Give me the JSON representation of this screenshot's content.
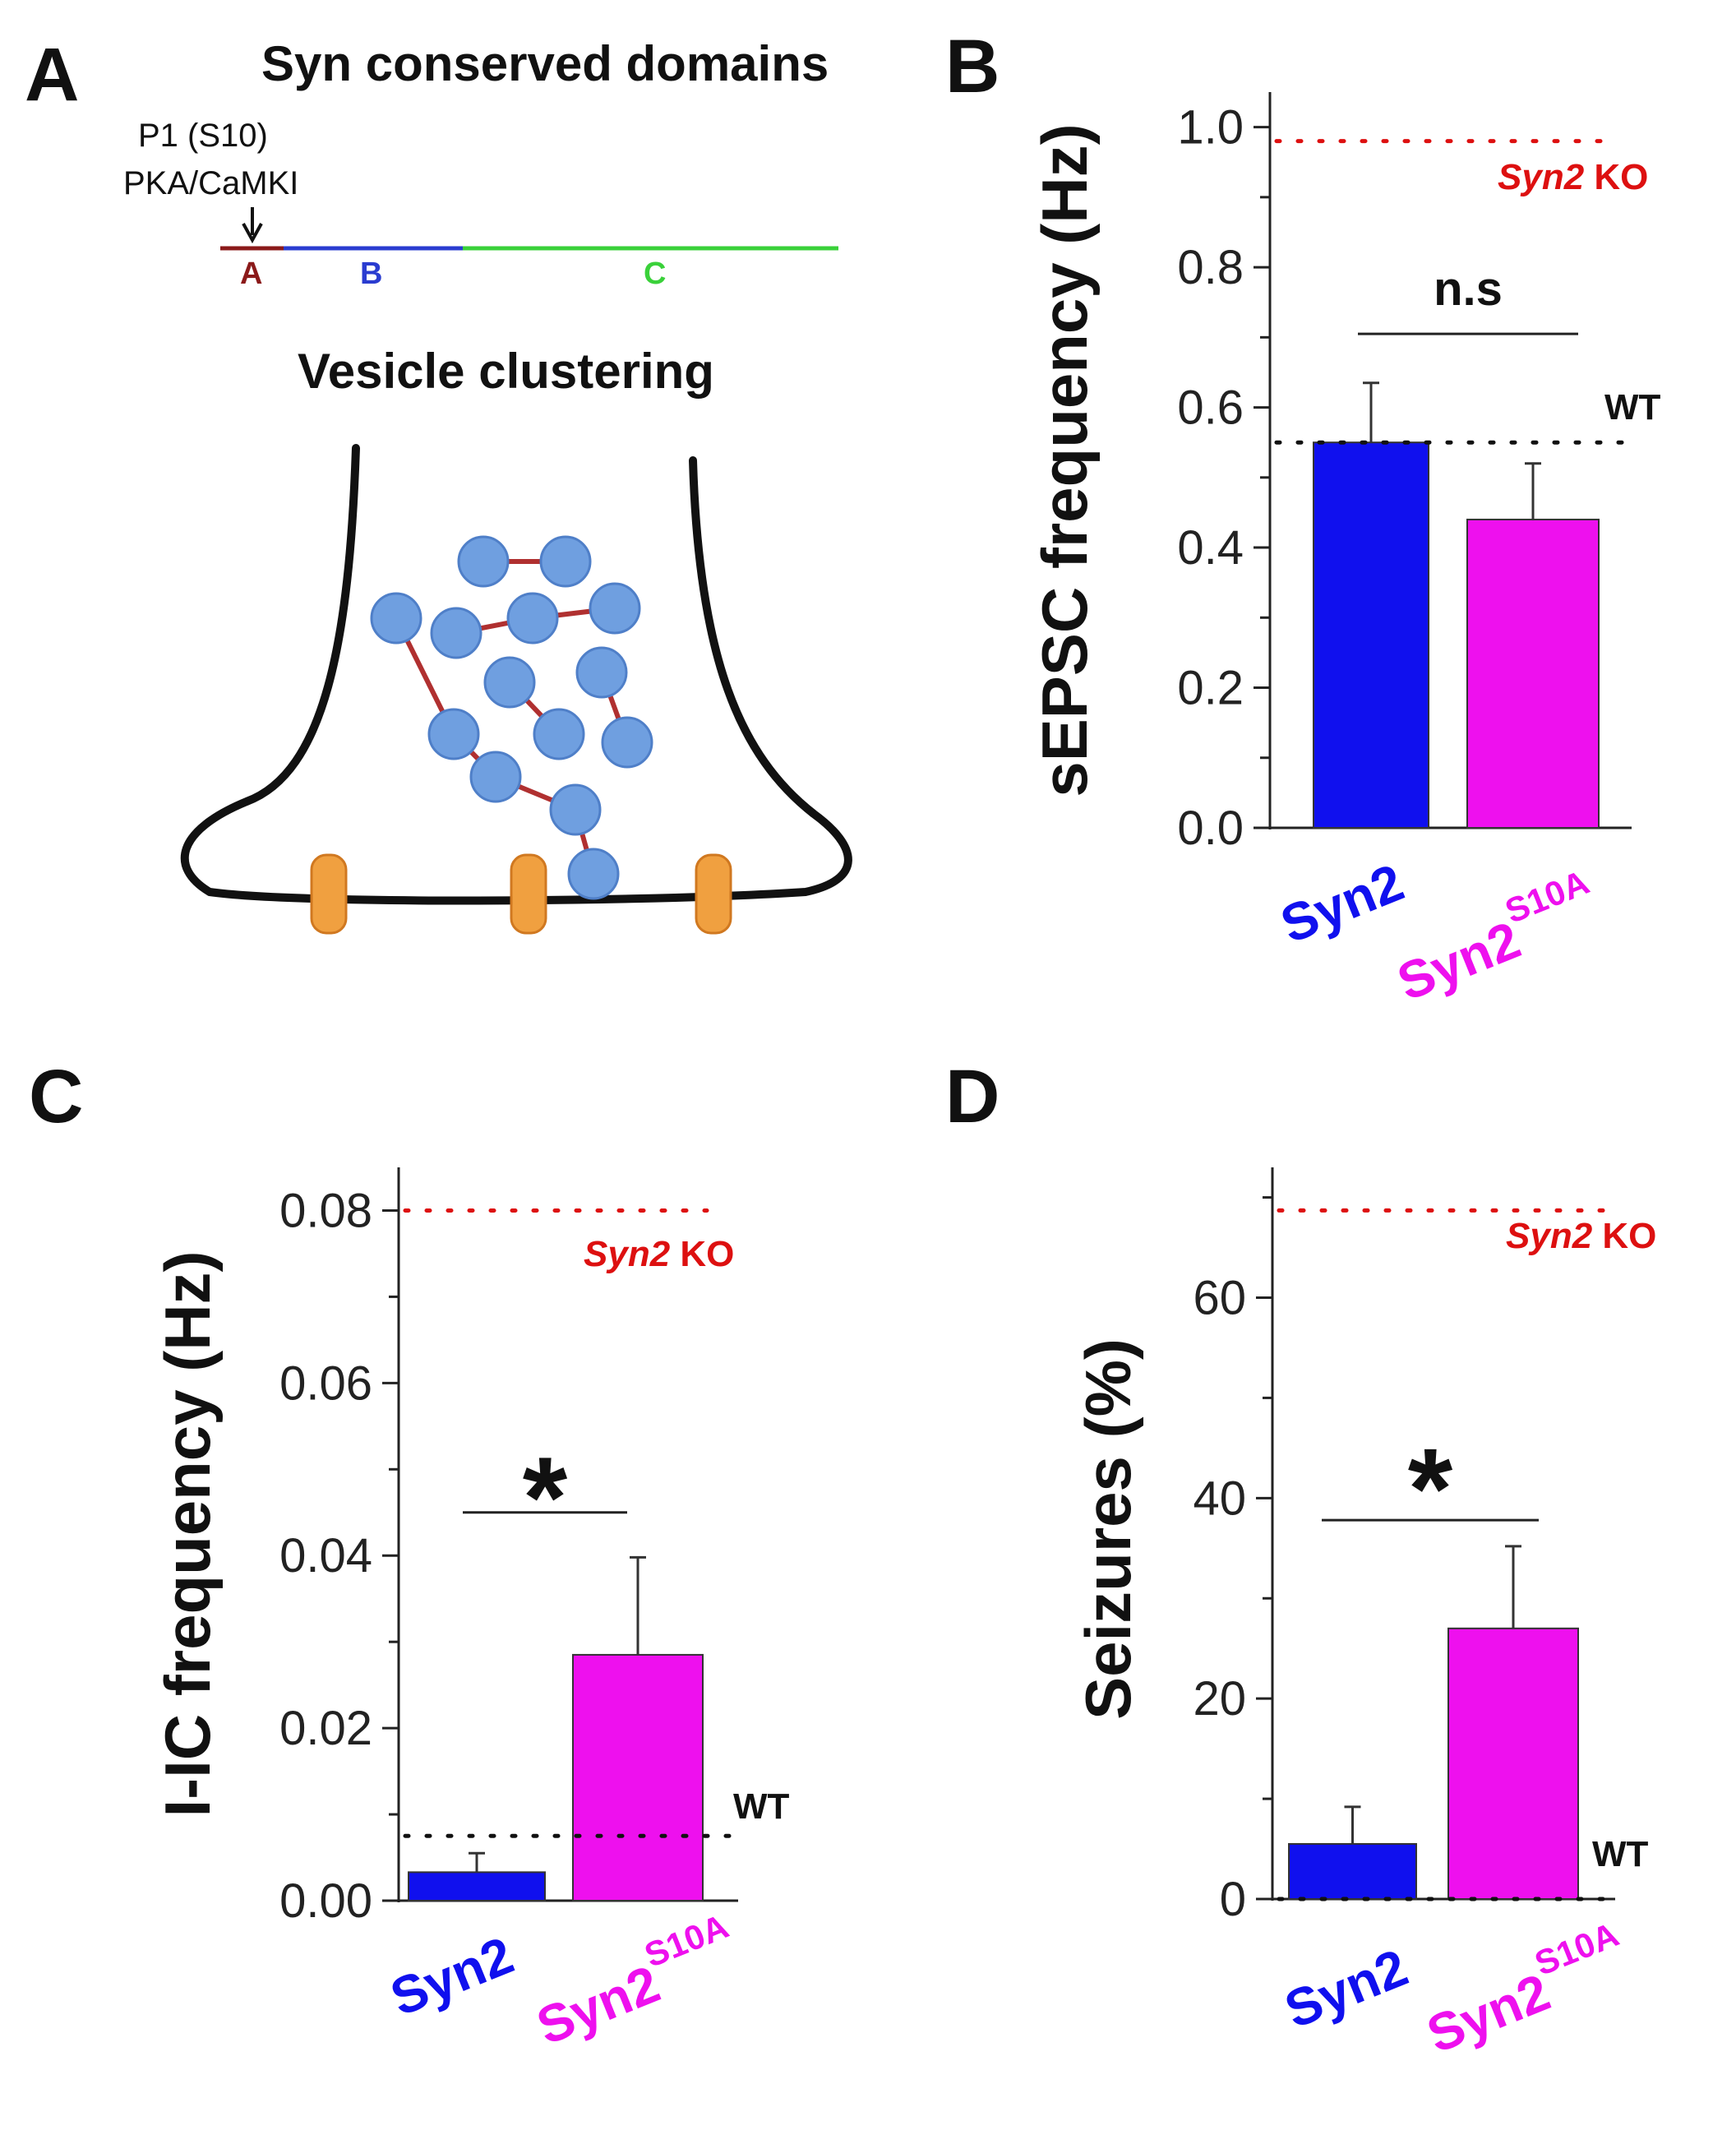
{
  "panel_a": {
    "letter": "A",
    "title": "Syn conserved domains",
    "site_label": "P1 (S10)",
    "kinase_label": "PKA/CaMKI",
    "domains": [
      {
        "label": "A",
        "color": "#8b1a1a"
      },
      {
        "label": "B",
        "color": "#2a3cd0"
      },
      {
        "label": "C",
        "color": "#3ad13a"
      }
    ],
    "diagram_title": "Vesicle clustering"
  },
  "colors": {
    "syn2": "#1010ee",
    "syn2_s10a": "#ee10ee",
    "ko_line": "#dd1010",
    "wt_line": "#111111",
    "vesicle": "#6f9fe0",
    "linker": "#b03030",
    "channel": "#f0a040"
  },
  "chart_data": [
    {
      "panel": "B",
      "type": "bar",
      "categories": [
        "Syn2",
        "Syn2"
      ],
      "superscripts": [
        "",
        "S10A"
      ],
      "values": [
        0.55,
        0.44
      ],
      "errors": [
        0.085,
        0.08
      ],
      "ylabel": "sEPSC frequency (Hz)",
      "ylim": [
        0.0,
        1.05
      ],
      "yticks": [
        "0.0",
        "0.2",
        "0.4",
        "0.6",
        "0.8",
        "1.0"
      ],
      "ytick_values": [
        0.0,
        0.2,
        0.4,
        0.6,
        0.8,
        1.0
      ],
      "reference_lines": [
        {
          "label_italic": "Syn2",
          "label": " KO",
          "value": 0.98
        },
        {
          "label": "WT",
          "value": 0.55
        }
      ],
      "significance": "n.s"
    },
    {
      "panel": "C",
      "type": "bar",
      "categories": [
        "Syn2",
        "Syn2"
      ],
      "superscripts": [
        "",
        "S10A"
      ],
      "values": [
        0.0033,
        0.0285
      ],
      "errors": [
        0.0022,
        0.0113
      ],
      "ylabel": "I-IC frequency (Hz)",
      "ylim": [
        0.0,
        0.085
      ],
      "yticks": [
        "0.00",
        "0.02",
        "0.04",
        "0.06",
        "0.08"
      ],
      "ytick_values": [
        0.0,
        0.02,
        0.04,
        0.06,
        0.08
      ],
      "reference_lines": [
        {
          "label_italic": "Syn2",
          "label": " KO",
          "value": 0.08
        },
        {
          "label": "WT",
          "value": 0.0075
        }
      ],
      "significance": "*"
    },
    {
      "panel": "D",
      "type": "bar",
      "categories": [
        "Syn2",
        "Syn2"
      ],
      "superscripts": [
        "",
        "S10A"
      ],
      "values": [
        5.5,
        27.0
      ],
      "errors": [
        3.7,
        8.2
      ],
      "ylabel": "Seizures (%)",
      "ylim": [
        0,
        73
      ],
      "yticks": [
        "0",
        "20",
        "40",
        "60"
      ],
      "ytick_values": [
        0,
        20,
        40,
        60
      ],
      "reference_lines": [
        {
          "label_italic": "Syn2",
          "label": " KO",
          "value": 68.7
        },
        {
          "label": "WT",
          "value": 0.0
        }
      ],
      "significance": "*"
    }
  ]
}
